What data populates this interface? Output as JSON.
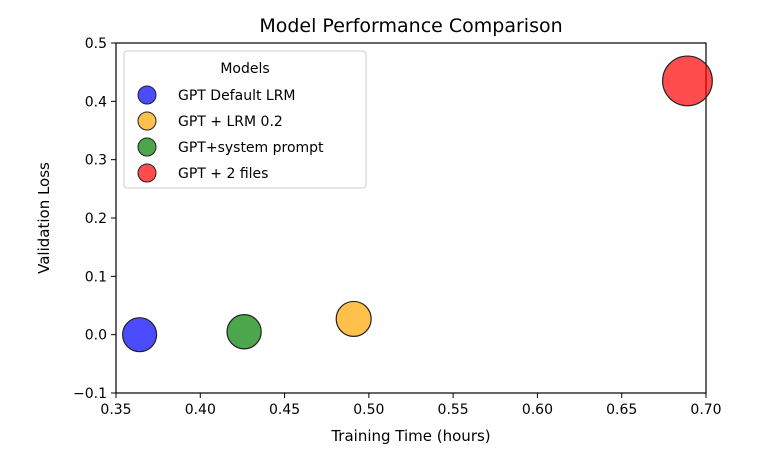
{
  "chart_data": {
    "type": "scatter",
    "title": "Model Performance Comparison",
    "xlabel": "Training Time (hours)",
    "ylabel": "Validation Loss",
    "xlim": [
      0.35,
      0.7
    ],
    "ylim": [
      -0.1,
      0.5
    ],
    "xticks": [
      "0.35",
      "0.40",
      "0.45",
      "0.50",
      "0.55",
      "0.60",
      "0.65",
      "0.70"
    ],
    "yticks": [
      "−0.1",
      "0.0",
      "0.1",
      "0.2",
      "0.3",
      "0.4",
      "0.5"
    ],
    "legend": {
      "title": "Models",
      "placement": "top-left"
    },
    "series": [
      {
        "name": "GPT Default LRM",
        "color": "#0000ff",
        "x": 0.364,
        "y": 0.0
      },
      {
        "name": "GPT + LRM 0.2",
        "color": "#ffa500",
        "x": 0.491,
        "y": 0.027
      },
      {
        "name": "GPT+system prompt",
        "color": "#008000",
        "x": 0.426,
        "y": 0.005
      },
      {
        "name": "GPT + 2 files",
        "color": "#ff0000",
        "x": 0.689,
        "y": 0.435
      }
    ],
    "grid": false
  }
}
